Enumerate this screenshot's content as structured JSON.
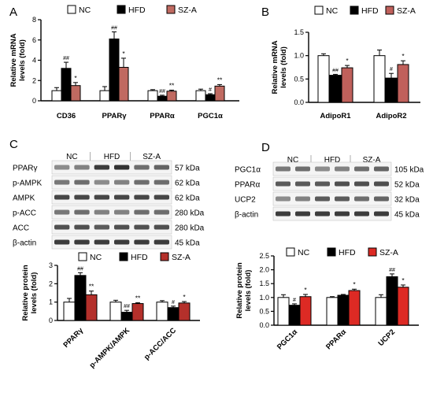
{
  "colors": {
    "nc": "#ffffff",
    "hfd": "#000000",
    "sza_a": "#c06a61",
    "sza_b": "#c0605b",
    "sza_c": "#b4302b",
    "sza_d": "#dd2a24"
  },
  "panels": {
    "A": {
      "label": "A"
    },
    "B": {
      "label": "B"
    },
    "C": {
      "label": "C",
      "groups": [
        "NC",
        "HFD",
        "SZ-A"
      ],
      "blot_rows": [
        {
          "name": "PPARγ",
          "kda": "57 kDa"
        },
        {
          "name": "p-AMPK",
          "kda": "62 kDa"
        },
        {
          "name": "AMPK",
          "kda": "62 kDa"
        },
        {
          "name": "p-ACC",
          "kda": "280 kDa"
        },
        {
          "name": "ACC",
          "kda": "280 kDa"
        },
        {
          "name": "β-actin",
          "kda": "45 kDa"
        }
      ]
    },
    "D": {
      "label": "D",
      "groups": [
        "NC",
        "HFD",
        "SZ-A"
      ],
      "blot_rows": [
        {
          "name": "PGC1α",
          "kda": "105 kDa"
        },
        {
          "name": "PPARα",
          "kda": "52 kDa"
        },
        {
          "name": "UCP2",
          "kda": "32 kDa"
        },
        {
          "name": "β-actin",
          "kda": "45 kDa"
        }
      ]
    }
  },
  "chart_data": [
    {
      "id": "A",
      "type": "bar",
      "ylabel": [
        "Relative mRNA",
        "levels (fold)"
      ],
      "ylim": [
        0,
        8
      ],
      "yticks": [
        0,
        2,
        4,
        6,
        8
      ],
      "categories": [
        "CD36",
        "PPARγ",
        "PPARα",
        "PGC1α"
      ],
      "legend": [
        "NC",
        "HFD",
        "SZ-A"
      ],
      "series": [
        {
          "name": "NC",
          "values": [
            1.0,
            1.0,
            1.0,
            1.0
          ],
          "errors": [
            0.3,
            0.4,
            0.1,
            0.15
          ]
        },
        {
          "name": "HFD",
          "values": [
            3.2,
            6.1,
            0.45,
            0.6
          ],
          "errors": [
            0.6,
            0.7,
            0.1,
            0.1
          ]
        },
        {
          "name": "SZ-A",
          "values": [
            1.5,
            3.3,
            0.95,
            1.45
          ],
          "errors": [
            0.3,
            0.9,
            0.1,
            0.15
          ]
        }
      ],
      "annotations": {
        "HFD": [
          "##",
          "##",
          "##",
          "#"
        ],
        "SZ-A": [
          "*",
          "*",
          "**",
          "**"
        ]
      }
    },
    {
      "id": "B",
      "type": "bar",
      "ylabel": [
        "Relative mRNA",
        "levels (fold)"
      ],
      "ylim": [
        0,
        1.5
      ],
      "yticks": [
        "0.0",
        "0.5",
        "1.0",
        "1.5"
      ],
      "categories": [
        "AdipoR1",
        "AdipoR2"
      ],
      "legend": [
        "NC",
        "HFD",
        "SZ-A"
      ],
      "series": [
        {
          "name": "NC",
          "values": [
            1.0,
            1.0
          ],
          "errors": [
            0.04,
            0.12
          ]
        },
        {
          "name": "HFD",
          "values": [
            0.58,
            0.52
          ],
          "errors": [
            0.02,
            0.1
          ]
        },
        {
          "name": "SZ-A",
          "values": [
            0.74,
            0.81
          ],
          "errors": [
            0.05,
            0.08
          ]
        }
      ],
      "annotations": {
        "HFD": [
          "##",
          "#"
        ],
        "SZ-A": [
          "*",
          "*"
        ]
      }
    },
    {
      "id": "C",
      "type": "bar",
      "ylabel": [
        "Relative protein",
        "levels (fold)"
      ],
      "ylim": [
        0,
        3
      ],
      "yticks": [
        0,
        1,
        2,
        3
      ],
      "categories": [
        "PPARγ",
        "p-AMPK/AMPK",
        "p-ACC/ACC"
      ],
      "legend": [
        "NC",
        "HFD",
        "SZ-A"
      ],
      "series": [
        {
          "name": "NC",
          "values": [
            1.0,
            1.0,
            1.0
          ],
          "errors": [
            0.2,
            0.1,
            0.08
          ]
        },
        {
          "name": "HFD",
          "values": [
            2.45,
            0.45,
            0.7
          ],
          "errors": [
            0.15,
            0.1,
            0.08
          ]
        },
        {
          "name": "SZ-A",
          "values": [
            1.4,
            0.92,
            0.95
          ],
          "errors": [
            0.2,
            0.05,
            0.08
          ]
        }
      ],
      "annotations": {
        "HFD": [
          "##",
          "##",
          "#"
        ],
        "SZ-A": [
          "**",
          "**",
          "*"
        ]
      }
    },
    {
      "id": "D",
      "type": "bar",
      "ylabel": [
        "Relative protein",
        "levels (fold)"
      ],
      "ylim": [
        0,
        2.5
      ],
      "yticks": [
        "0.0",
        "0.5",
        "1.0",
        "1.5",
        "2.0",
        "2.5"
      ],
      "categories": [
        "PGC1α",
        "PPARα",
        "UCP2"
      ],
      "legend": [
        "NC",
        "HFD",
        "SZ-A"
      ],
      "series": [
        {
          "name": "NC",
          "values": [
            1.0,
            1.0,
            1.0
          ],
          "errors": [
            0.1,
            0.03,
            0.1
          ]
        },
        {
          "name": "HFD",
          "values": [
            0.72,
            1.08,
            1.75
          ],
          "errors": [
            0.05,
            0.03,
            0.1
          ]
        },
        {
          "name": "SZ-A",
          "values": [
            1.03,
            1.25,
            1.37
          ],
          "errors": [
            0.08,
            0.05,
            0.08
          ]
        }
      ],
      "annotations": {
        "HFD": [
          "#",
          "",
          "##"
        ],
        "SZ-A": [
          "*",
          "*",
          "*"
        ]
      }
    }
  ]
}
